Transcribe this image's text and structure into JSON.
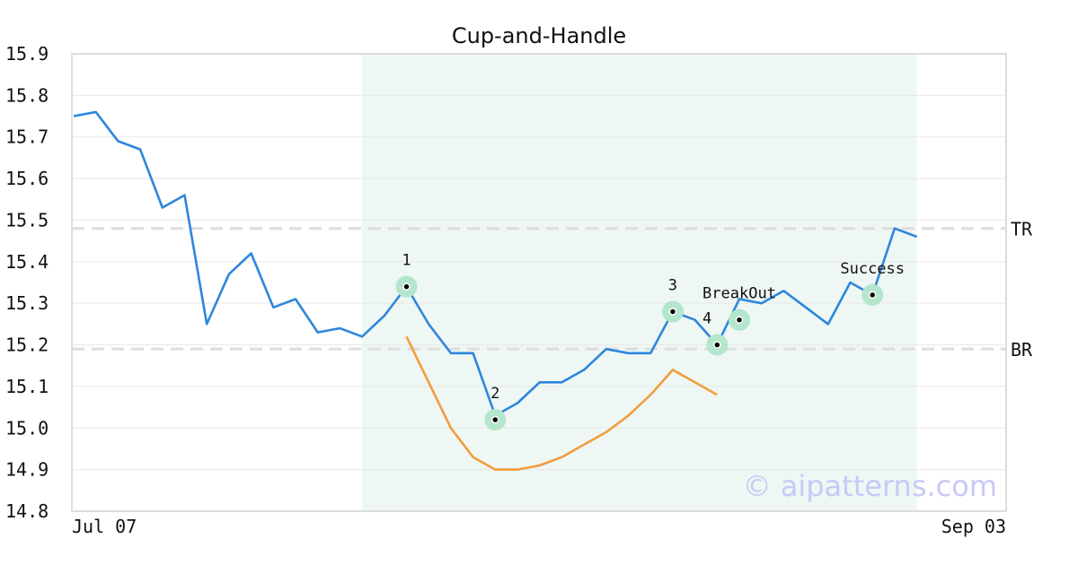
{
  "chart_data": {
    "type": "line",
    "title": "Cup-and-Handle",
    "xlabel": "",
    "ylabel": "",
    "ylim": [
      14.8,
      15.9
    ],
    "yticks": [
      "15.9",
      "15.8",
      "15.7",
      "15.6",
      "15.5",
      "15.4",
      "15.3",
      "15.2",
      "15.1",
      "15.0",
      "14.9",
      "14.8"
    ],
    "x_tick_labels": [
      {
        "index": 0,
        "label": "Jul 07"
      },
      {
        "index": 38,
        "label": "Sep 03"
      }
    ],
    "grid": true,
    "colors": {
      "price": "#2e86de",
      "cup": "#f39c3d",
      "marker": "#b3e6cc",
      "region": "#eef7f3",
      "ref": "#dddddd"
    },
    "series": [
      {
        "role": "price",
        "values": [
          15.75,
          15.76,
          15.69,
          15.67,
          15.53,
          15.56,
          15.25,
          15.37,
          15.42,
          15.29,
          15.31,
          15.23,
          15.24,
          15.22,
          15.27,
          15.34,
          15.25,
          15.18,
          15.18,
          15.03,
          15.06,
          15.11,
          15.11,
          15.14,
          15.19,
          15.18,
          15.18,
          15.28,
          15.26,
          15.2,
          15.31,
          15.3,
          15.33,
          15.29,
          15.25,
          15.35,
          15.32,
          15.48,
          15.46
        ]
      },
      {
        "role": "cup-fit",
        "x_start": 15,
        "values": [
          15.22,
          15.11,
          15.0,
          14.93,
          14.9,
          14.9,
          14.91,
          14.93,
          14.96,
          14.99,
          15.03,
          15.08,
          15.14,
          15.11,
          15.08
        ]
      }
    ],
    "highlight_region": {
      "x_start": 13,
      "x_end": 38
    },
    "reference_lines": [
      {
        "label": "TR",
        "y": 15.48
      },
      {
        "label": "BR",
        "y": 15.19
      }
    ],
    "points": [
      {
        "label": "1",
        "x": 15,
        "y": 15.34
      },
      {
        "label": "2",
        "x": 19,
        "y": 15.02
      },
      {
        "label": "3",
        "x": 27,
        "y": 15.28
      },
      {
        "label": "4",
        "x": 29,
        "y": 15.2
      },
      {
        "label": "BreakOut",
        "x": 30,
        "y": 15.26
      },
      {
        "label": "Success",
        "x": 36,
        "y": 15.32
      }
    ],
    "watermark": "© aipatterns.com"
  }
}
